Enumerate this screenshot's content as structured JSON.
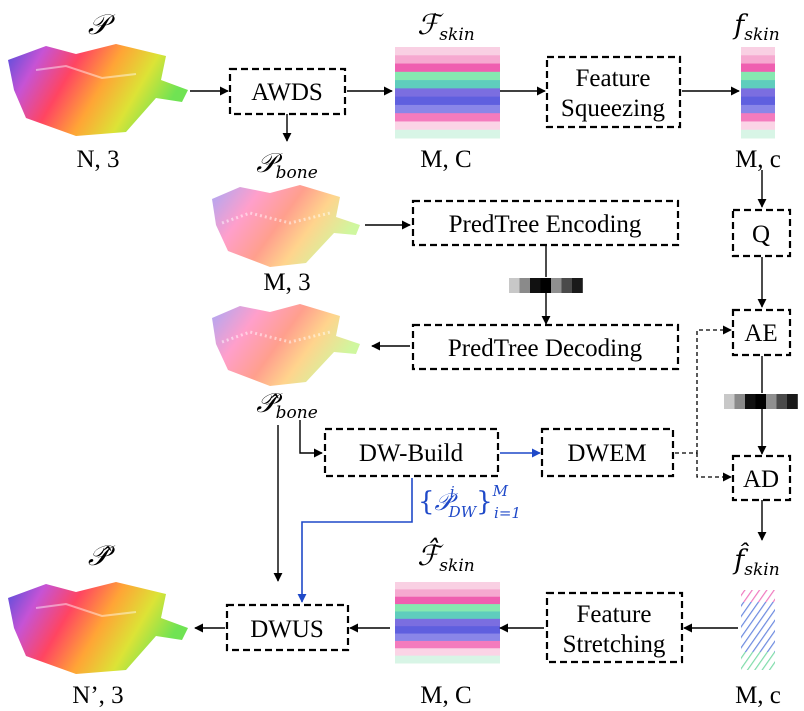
{
  "symbols": {
    "p_input": {
      "main": "𝒫",
      "sub": ""
    },
    "f_skin_big": {
      "main": "ℱ",
      "sub": "skin"
    },
    "f_skin_small": {
      "main": "f",
      "sub": "skin"
    },
    "p_bone": {
      "main": "𝒫",
      "sub": "bone"
    },
    "p_bone_hat": {
      "main": "𝒫̂",
      "sub": "bone"
    },
    "p_hat": {
      "main": "𝒫̂",
      "sub": ""
    },
    "f_skin_big_hat": {
      "main": "ℱ̂",
      "sub": "skin"
    },
    "f_skin_small_hat": {
      "main": "f̂",
      "sub": "skin"
    },
    "p_dw_set": {
      "open": "{",
      "main": "𝒫",
      "sup": "i",
      "sub": "DW",
      "close": "}",
      "set_sup": "M",
      "set_sub": "i=1"
    }
  },
  "dims": {
    "input": "N, 3",
    "f_skin_big": "M, C",
    "f_skin_small": "M, c",
    "bone": "M, 3",
    "output": "N’, 3",
    "f_skin_big_hat": "M, C",
    "f_skin_small_hat": "M, c"
  },
  "modules": {
    "awds": "AWDS",
    "feature_squeezing": [
      "Feature",
      "Squeezing"
    ],
    "predtree_encoding": "PredTree Encoding",
    "predtree_decoding": "PredTree Decoding",
    "q": "Q",
    "ae": "AE",
    "dw_build": "DW-Build",
    "dwem": "DWEM",
    "ad": "AD",
    "dwus": "DWUS",
    "feature_stretching": [
      "Feature",
      "Stretching"
    ]
  },
  "colors": {
    "arrow": "#000000",
    "blue_arrow": "#1f49c8",
    "feature_stripes": [
      "#f9d0e3",
      "#f6a9d0",
      "#ef5fb0",
      "#86e8b0",
      "#5fcdbd",
      "#7b6ee0",
      "#5f5fdf",
      "#8a86e8",
      "#f47bbd",
      "#fbd4e6",
      "#d8f5e6"
    ],
    "bitstream": [
      "#c8c8c8",
      "#8a8a8a",
      "#111111",
      "#000000",
      "#8f8f8f",
      "#4a4a4a",
      "#1a1a1a"
    ]
  },
  "icons": {
    "point_cloud": "point-cloud-icon",
    "feature_stack": "feature-stack-icon",
    "bitstream": "bitstream-icon"
  }
}
